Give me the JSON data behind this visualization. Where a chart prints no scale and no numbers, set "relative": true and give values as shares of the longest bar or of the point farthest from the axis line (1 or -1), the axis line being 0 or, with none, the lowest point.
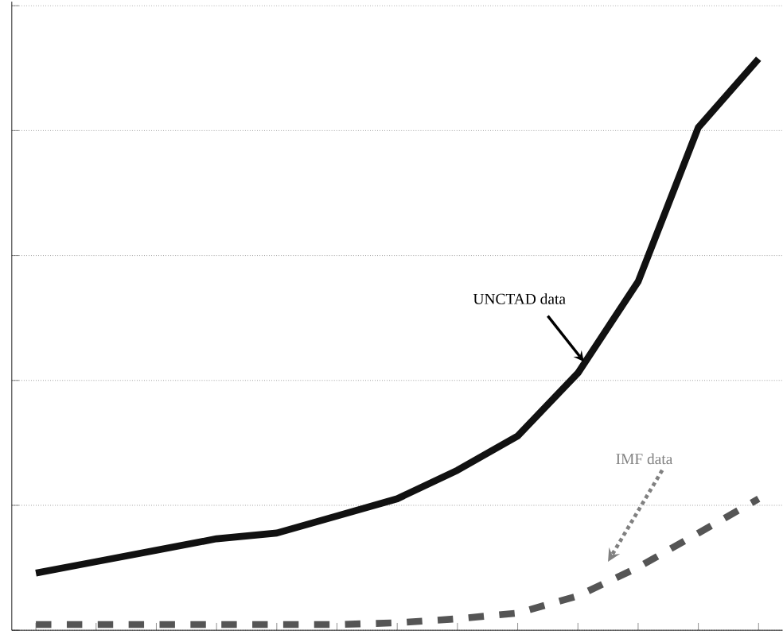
{
  "chart_data": {
    "type": "line",
    "relative": true,
    "grid": "y",
    "tick_labels": false,
    "categories": [
      null,
      null,
      null,
      null,
      null,
      null,
      null,
      null,
      null,
      null,
      null,
      null,
      null
    ],
    "series": [
      {
        "color": "#111111",
        "line_style": "solid",
        "values": [
          0.1,
          0.12,
          0.14,
          0.16,
          0.17,
          0.2,
          0.23,
          0.28,
          0.34,
          0.45,
          0.61,
          0.88,
          1.0
        ]
      },
      {
        "color": "#555555",
        "line_style": "dashed",
        "values": [
          0.01,
          0.01,
          0.01,
          0.01,
          0.01,
          0.01,
          0.013,
          0.02,
          0.03,
          0.06,
          0.11,
          0.17,
          0.23
        ]
      }
    ],
    "annotations": [
      "UNCTAD data",
      "IMF data"
    ]
  }
}
